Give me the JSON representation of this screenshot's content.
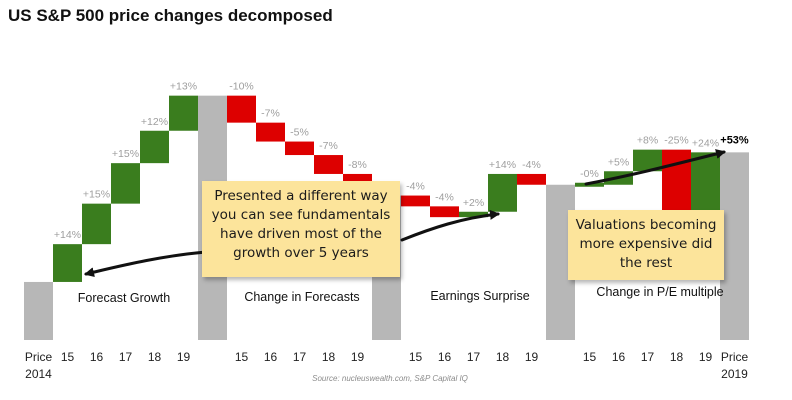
{
  "title": "US S&P 500 price changes decomposed",
  "source": "Source: nucleuswealth.com, S&P Capital IQ",
  "colors": {
    "positive": "#3a7d1e",
    "negative": "#dd0000",
    "total": "#b7b7b7",
    "label": "#9e9e9e",
    "final_label": "#000000"
  },
  "notes": {
    "fundamentals": "Presented a different way you can see fundamentals have driven most of the growth over 5 years",
    "valuations": "Valuations becoming more expensive did the rest"
  },
  "chart_data": {
    "type": "waterfall",
    "unit": "%",
    "base_label": "Price 2014",
    "final_label": "Price 2019",
    "final_value": "+53%",
    "groups": [
      {
        "name": "Forecast Growth",
        "years": [
          "15",
          "16",
          "17",
          "18",
          "19"
        ],
        "values": [
          14,
          15,
          15,
          12,
          13
        ],
        "labels": [
          "+14%",
          "+15%",
          "+15%",
          "+12%",
          "+13%"
        ]
      },
      {
        "name": "Change in Forecasts",
        "years": [
          "15",
          "16",
          "17",
          "18",
          "19"
        ],
        "values": [
          -10,
          -7,
          -5,
          -7,
          -8
        ],
        "labels": [
          "-10%",
          "-7%",
          "-5%",
          "-7%",
          "-8%"
        ]
      },
      {
        "name": "Earnings Surprise",
        "years": [
          "15",
          "16",
          "17",
          "18",
          "19"
        ],
        "values": [
          -4,
          -4,
          2,
          14,
          -4
        ],
        "labels": [
          "-4%",
          "-4%",
          "+2%",
          "+14%",
          "-4%"
        ]
      },
      {
        "name": "Change in P/E multiple",
        "years": [
          "15",
          "16",
          "17",
          "18",
          "19"
        ],
        "values": [
          0,
          5,
          8,
          -25,
          24
        ],
        "labels": [
          "-0%",
          "+5%",
          "+8%",
          "-25%",
          "+24%"
        ]
      }
    ]
  }
}
